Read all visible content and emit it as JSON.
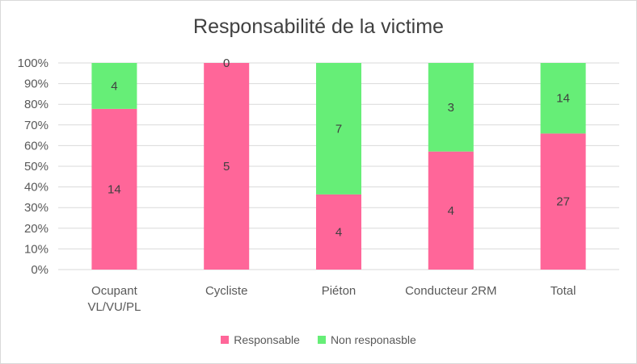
{
  "chart_data": {
    "type": "bar",
    "stacked": "percent",
    "title": "Responsabilité de la victime",
    "categories": [
      [
        "Ocupant",
        "VL/VU/PL"
      ],
      [
        "Cycliste"
      ],
      [
        "Piéton"
      ],
      [
        "Conducteur 2RM"
      ],
      [
        "Total"
      ]
    ],
    "series": [
      {
        "name": "Responsable",
        "color": "#ff6699",
        "values": [
          14,
          5,
          4,
          4,
          27
        ]
      },
      {
        "name": "Non responasble",
        "color": "#66ee77",
        "values": [
          4,
          0,
          7,
          3,
          14
        ]
      }
    ],
    "yticks": [
      "0%",
      "10%",
      "20%",
      "30%",
      "40%",
      "50%",
      "60%",
      "70%",
      "80%",
      "90%",
      "100%"
    ],
    "ylim": [
      0,
      100
    ],
    "grid": true,
    "legend_position": "bottom"
  }
}
